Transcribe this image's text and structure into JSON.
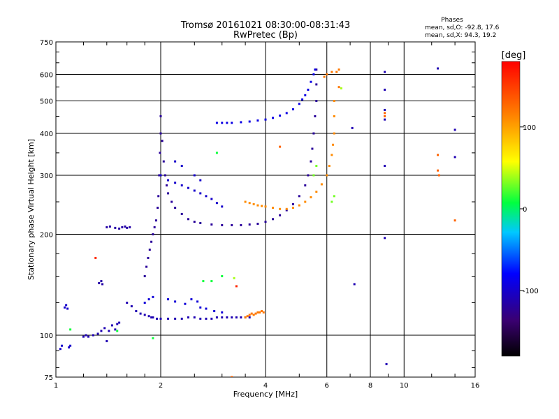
{
  "header": {
    "title_line1": "Tromsø 20161021 08:30:00-08:31:43",
    "title_line2": "RwPretec (Bp)",
    "phases_heading": "Phases",
    "phases_o": "mean, sd,O: -92.8, 17.6",
    "phases_x": "mean, sd,X:  94.3, 19.2"
  },
  "colorbar": {
    "unit_label": "[deg]",
    "range": [
      -180,
      180
    ],
    "ticks": [
      "100",
      "0",
      "-100"
    ],
    "tick_values": [
      100,
      0,
      -100
    ],
    "colormap": "rainbow"
  },
  "chart_data": {
    "type": "scatter",
    "xlabel": "Frequency [MHz]",
    "ylabel": "Stationary phase Virtual Height [km]",
    "x_scale": "log",
    "y_scale": "log",
    "xlim": [
      1,
      16
    ],
    "ylim": [
      75,
      750
    ],
    "x_ticks": [
      1,
      2,
      4,
      6,
      8,
      10,
      16
    ],
    "x_tick_labels": [
      "1",
      "2",
      "4",
      "6",
      "8",
      "10",
      "16"
    ],
    "y_ticks": [
      75,
      100,
      200,
      300,
      400,
      500,
      600,
      750
    ],
    "y_tick_labels": [
      "75",
      "100",
      "200",
      "300",
      "400",
      "500",
      "600",
      "750"
    ],
    "grid": true,
    "color_encodes": "phase [deg]",
    "traces": [
      {
        "phase": -100,
        "points": [
          [
            1.03,
            91
          ],
          [
            1.04,
            93
          ],
          [
            1.09,
            92
          ],
          [
            1.1,
            93
          ],
          [
            1.06,
            121
          ],
          [
            1.07,
            123
          ],
          [
            1.08,
            120
          ]
        ]
      },
      {
        "phase": -110,
        "points": [
          [
            1.2,
            99
          ],
          [
            1.22,
            100
          ],
          [
            1.24,
            99
          ],
          [
            1.28,
            100
          ],
          [
            1.32,
            101
          ],
          [
            1.35,
            103
          ],
          [
            1.38,
            105
          ],
          [
            1.42,
            103
          ],
          [
            1.45,
            107
          ],
          [
            1.5,
            108
          ],
          [
            1.52,
            109
          ],
          [
            1.48,
            104
          ],
          [
            1.4,
            96
          ]
        ]
      },
      {
        "phase": -115,
        "points": [
          [
            1.33,
            143
          ],
          [
            1.35,
            145
          ],
          [
            1.36,
            142
          ],
          [
            1.4,
            210
          ],
          [
            1.43,
            211
          ],
          [
            1.48,
            209
          ],
          [
            1.52,
            208
          ],
          [
            1.55,
            210
          ],
          [
            1.58,
            211
          ],
          [
            1.6,
            209
          ],
          [
            1.63,
            210
          ]
        ]
      },
      {
        "phase": -110,
        "points": [
          [
            1.6,
            125
          ],
          [
            1.65,
            122
          ],
          [
            1.7,
            118
          ],
          [
            1.75,
            116
          ],
          [
            1.8,
            115
          ],
          [
            1.85,
            114
          ],
          [
            1.88,
            113
          ],
          [
            1.9,
            113
          ],
          [
            1.95,
            112
          ],
          [
            2.0,
            112
          ],
          [
            2.1,
            112
          ],
          [
            2.2,
            112
          ],
          [
            2.3,
            112
          ],
          [
            2.4,
            113
          ],
          [
            2.5,
            113
          ],
          [
            2.6,
            112
          ],
          [
            2.7,
            112
          ],
          [
            2.8,
            112
          ],
          [
            2.9,
            113
          ],
          [
            3.0,
            113
          ],
          [
            3.1,
            113
          ],
          [
            3.2,
            113
          ],
          [
            3.3,
            113
          ],
          [
            3.4,
            113
          ],
          [
            3.5,
            113
          ],
          [
            3.6,
            113
          ]
        ]
      },
      {
        "phase": 120,
        "points": [
          [
            3.5,
            113
          ],
          [
            3.55,
            114
          ],
          [
            3.6,
            115
          ],
          [
            3.65,
            116
          ],
          [
            3.7,
            115
          ],
          [
            3.75,
            116
          ],
          [
            3.8,
            117
          ],
          [
            3.85,
            117
          ],
          [
            3.9,
            118
          ],
          [
            3.95,
            117
          ]
        ]
      },
      {
        "phase": -95,
        "points": [
          [
            1.8,
            125
          ],
          [
            1.85,
            128
          ],
          [
            1.9,
            130
          ],
          [
            2.1,
            128
          ],
          [
            2.2,
            126
          ],
          [
            2.35,
            124
          ],
          [
            2.45,
            128
          ],
          [
            2.55,
            126
          ],
          [
            2.6,
            121
          ],
          [
            2.7,
            120
          ],
          [
            2.85,
            118
          ],
          [
            3.0,
            117
          ]
        ]
      },
      {
        "phase": -120,
        "points": [
          [
            1.8,
            150
          ],
          [
            1.82,
            160
          ],
          [
            1.84,
            170
          ],
          [
            1.86,
            180
          ],
          [
            1.88,
            190
          ],
          [
            1.9,
            200
          ],
          [
            1.92,
            210
          ],
          [
            1.94,
            220
          ],
          [
            1.96,
            240
          ],
          [
            1.97,
            260
          ],
          [
            1.98,
            300
          ],
          [
            1.99,
            350
          ],
          [
            2.0,
            400
          ],
          [
            2.0,
            450
          ],
          [
            2.02,
            380
          ],
          [
            2.04,
            330
          ],
          [
            2.06,
            300
          ],
          [
            2.08,
            280
          ],
          [
            2.1,
            265
          ],
          [
            2.15,
            250
          ],
          [
            2.2,
            240
          ],
          [
            2.3,
            230
          ],
          [
            2.4,
            222
          ],
          [
            2.5,
            218
          ],
          [
            2.6,
            216
          ],
          [
            2.8,
            214
          ],
          [
            3.0,
            213
          ],
          [
            3.2,
            213
          ],
          [
            3.4,
            213
          ],
          [
            3.6,
            214
          ],
          [
            3.8,
            215
          ],
          [
            4.0,
            218
          ],
          [
            4.2,
            222
          ],
          [
            4.4,
            228
          ],
          [
            4.6,
            236
          ],
          [
            4.8,
            246
          ],
          [
            5.0,
            260
          ],
          [
            5.2,
            280
          ],
          [
            5.3,
            300
          ],
          [
            5.4,
            330
          ],
          [
            5.45,
            360
          ],
          [
            5.5,
            400
          ],
          [
            5.55,
            450
          ],
          [
            5.6,
            500
          ],
          [
            5.6,
            560
          ],
          [
            5.6,
            620
          ]
        ]
      },
      {
        "phase": -100,
        "points": [
          [
            2.0,
            300
          ],
          [
            2.1,
            290
          ],
          [
            2.2,
            285
          ],
          [
            2.3,
            280
          ],
          [
            2.4,
            275
          ],
          [
            2.5,
            270
          ],
          [
            2.6,
            265
          ],
          [
            2.7,
            260
          ],
          [
            2.8,
            255
          ],
          [
            2.9,
            248
          ],
          [
            3.0,
            242
          ],
          [
            2.2,
            330
          ],
          [
            2.3,
            320
          ],
          [
            2.5,
            300
          ],
          [
            2.6,
            290
          ]
        ]
      },
      {
        "phase": -90,
        "points": [
          [
            2.9,
            430
          ],
          [
            3.0,
            430
          ],
          [
            3.1,
            430
          ],
          [
            3.2,
            430
          ],
          [
            3.4,
            432
          ],
          [
            3.6,
            434
          ],
          [
            3.8,
            437
          ],
          [
            4.0,
            440
          ],
          [
            4.2,
            445
          ],
          [
            4.4,
            452
          ],
          [
            4.6,
            460
          ],
          [
            4.8,
            472
          ],
          [
            5.0,
            490
          ],
          [
            5.1,
            505
          ],
          [
            5.2,
            520
          ],
          [
            5.3,
            540
          ],
          [
            5.4,
            570
          ],
          [
            5.5,
            600
          ],
          [
            5.55,
            620
          ]
        ]
      },
      {
        "phase": 110,
        "points": [
          [
            3.5,
            250
          ],
          [
            3.6,
            248
          ],
          [
            3.7,
            246
          ],
          [
            3.8,
            244
          ],
          [
            3.9,
            243
          ],
          [
            4.0,
            242
          ],
          [
            4.2,
            240
          ],
          [
            4.4,
            238
          ],
          [
            4.6,
            238
          ],
          [
            4.8,
            240
          ],
          [
            5.0,
            244
          ],
          [
            5.2,
            250
          ],
          [
            5.4,
            258
          ],
          [
            5.6,
            268
          ],
          [
            5.8,
            282
          ],
          [
            6.0,
            300
          ],
          [
            6.1,
            320
          ],
          [
            6.2,
            345
          ],
          [
            6.25,
            370
          ],
          [
            6.3,
            400
          ],
          [
            6.3,
            450
          ],
          [
            6.3,
            500
          ]
        ]
      },
      {
        "phase": 30,
        "points": [
          [
            5.5,
            300
          ],
          [
            5.6,
            320
          ],
          [
            6.2,
            250
          ],
          [
            6.3,
            260
          ]
        ]
      },
      {
        "phase": 120,
        "points": [
          [
            5.9,
            590
          ],
          [
            6.0,
            600
          ],
          [
            6.4,
            610
          ],
          [
            6.5,
            620
          ],
          [
            6.5,
            550
          ],
          [
            6.2,
            610
          ]
        ]
      },
      {
        "phase": -110,
        "points": [
          [
            8.8,
            610
          ],
          [
            8.8,
            540
          ],
          [
            8.8,
            470
          ],
          [
            8.8,
            440
          ],
          [
            8.8,
            320
          ],
          [
            8.8,
            195
          ],
          [
            8.9,
            82
          ],
          [
            7.1,
            415
          ],
          [
            7.2,
            142
          ],
          [
            12.5,
            625
          ],
          [
            14,
            410
          ],
          [
            14,
            340
          ]
        ]
      },
      {
        "phase": 130,
        "points": [
          [
            8.8,
            450
          ],
          [
            8.8,
            460
          ],
          [
            12.5,
            345
          ],
          [
            12.5,
            310
          ],
          [
            12.6,
            300
          ],
          [
            14,
            220
          ],
          [
            4.4,
            365
          ],
          [
            3.2,
            75
          ]
        ]
      },
      {
        "phase": 10,
        "points": [
          [
            2.8,
            145
          ],
          [
            2.65,
            145
          ],
          [
            3.0,
            150
          ],
          [
            2.9,
            350
          ],
          [
            1.1,
            104
          ],
          [
            1.5,
            103
          ],
          [
            1.9,
            98
          ]
        ]
      },
      {
        "phase": 160,
        "points": [
          [
            3.3,
            140
          ],
          [
            1.3,
            170
          ]
        ]
      },
      {
        "phase": 40,
        "points": [
          [
            3.25,
            148
          ],
          [
            6.6,
            545
          ]
        ]
      }
    ]
  }
}
